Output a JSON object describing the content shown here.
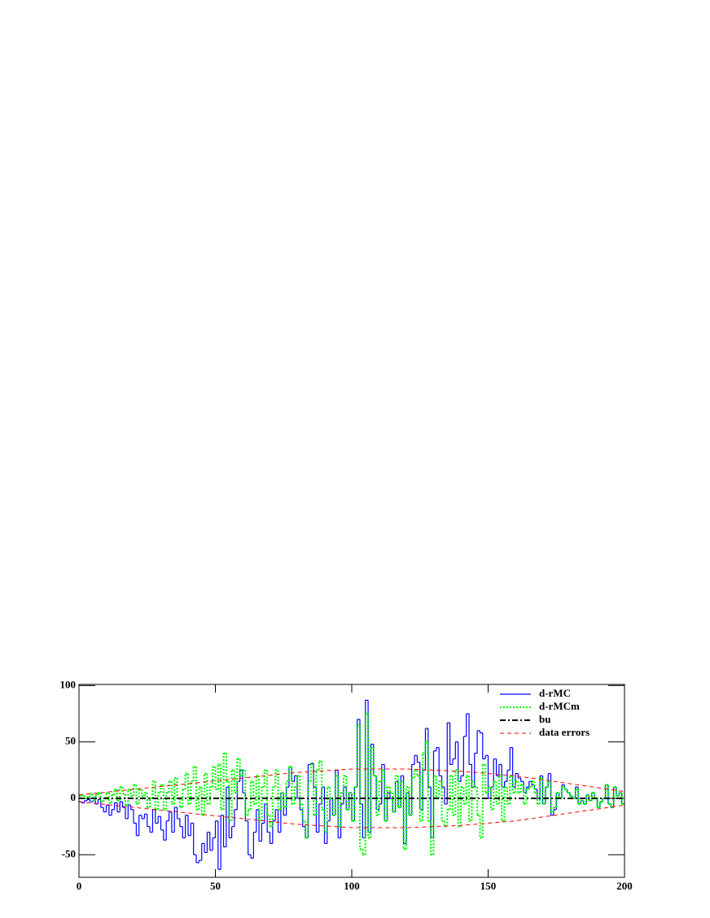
{
  "chart_data": {
    "type": "histogram",
    "bins": [
      0,
      1,
      2,
      3,
      4,
      5,
      6,
      7,
      8,
      9,
      10,
      11,
      12,
      13,
      14,
      15,
      16,
      17,
      18,
      19,
      20,
      21,
      22,
      23,
      24,
      25,
      26,
      27,
      28,
      29,
      30,
      31,
      32,
      33,
      34,
      35,
      36,
      37,
      38,
      39,
      40,
      41,
      42,
      43,
      44,
      45,
      46,
      47,
      48,
      49,
      50,
      51,
      52,
      53,
      54,
      55,
      56,
      57,
      58,
      59,
      60,
      61,
      62,
      63,
      64,
      65,
      66,
      67,
      68,
      69,
      70,
      71,
      72,
      73,
      74,
      75,
      76,
      77,
      78,
      79,
      80,
      81,
      82,
      83,
      84,
      85,
      86,
      87,
      88,
      89,
      90,
      91,
      92,
      93,
      94,
      95,
      96,
      97,
      98,
      99,
      100,
      101,
      102,
      103,
      104,
      105,
      106,
      107,
      108,
      109,
      110,
      111,
      112,
      113,
      114,
      115,
      116,
      117,
      118,
      119,
      120,
      121,
      122,
      123,
      124,
      125,
      126,
      127,
      128,
      129,
      130,
      131,
      132,
      133,
      134,
      135,
      136,
      137,
      138,
      139,
      140,
      141,
      142,
      143,
      144,
      145,
      146,
      147,
      148,
      149,
      150,
      151,
      152,
      153,
      154,
      155,
      156,
      157,
      158,
      159,
      160,
      161,
      162,
      163,
      164,
      165,
      166,
      167,
      168,
      169,
      170,
      171,
      172,
      173,
      174,
      175,
      176,
      177,
      178,
      179,
      180,
      181,
      182,
      183,
      184,
      185,
      186,
      187,
      188,
      189,
      190,
      191,
      192,
      193,
      194,
      195,
      196,
      197,
      198,
      199,
      200
    ],
    "series": [
      {
        "name": "d-rMC",
        "color": "#0000ff",
        "style": "solid",
        "values": [
          -3,
          -4,
          -2,
          -1,
          -3,
          -2,
          -5,
          -1,
          -8,
          -12,
          -6,
          -15,
          -10,
          -4,
          -12,
          -3,
          -8,
          -18,
          -6,
          -10,
          -22,
          -33,
          -15,
          -18,
          -14,
          -25,
          -30,
          -10,
          -22,
          -16,
          -28,
          -37,
          -20,
          -12,
          -30,
          -8,
          -18,
          -25,
          -35,
          -15,
          -33,
          -22,
          -50,
          -57,
          -55,
          -40,
          -48,
          -30,
          -46,
          -35,
          -20,
          -63,
          -15,
          -43,
          10,
          -35,
          -25,
          -10,
          15,
          25,
          5,
          -20,
          -50,
          -53,
          -30,
          -10,
          -38,
          -22,
          -5,
          -30,
          -40,
          -20,
          -10,
          -30,
          5,
          -15,
          10,
          28,
          15,
          20,
          0,
          -10,
          -25,
          -35,
          30,
          31,
          10,
          -30,
          -5,
          10,
          -40,
          -20,
          0,
          -15,
          25,
          -35,
          -5,
          10,
          -10,
          5,
          -20,
          10,
          70,
          -5,
          -35,
          87,
          -30,
          48,
          20,
          -10,
          -5,
          30,
          -20,
          5,
          0,
          -12,
          15,
          -8,
          20,
          -40,
          5,
          -15,
          30,
          38,
          32,
          -10,
          25,
          62,
          10,
          -35,
          42,
          45,
          20,
          10,
          -5,
          67,
          30,
          35,
          50,
          15,
          20,
          55,
          75,
          30,
          10,
          40,
          60,
          58,
          35,
          38,
          0,
          10,
          35,
          20,
          30,
          10,
          15,
          25,
          45,
          10,
          22,
          18,
          15,
          5,
          10,
          15,
          12,
          8,
          0,
          20,
          -5,
          10,
          22,
          -15,
          -10,
          5,
          0,
          12,
          8,
          5,
          2,
          0,
          10,
          -5,
          -2,
          -5,
          3,
          -2,
          5,
          0,
          -8,
          -3,
          0,
          12,
          -5,
          -8,
          10,
          2,
          5,
          -5
        ]
      },
      {
        "name": "d-rMCm",
        "color": "#00ff00",
        "style": "dotted",
        "values": [
          2,
          3,
          0,
          1,
          4,
          -2,
          3,
          5,
          -3,
          0,
          5,
          -4,
          3,
          8,
          -2,
          10,
          4,
          -6,
          8,
          2,
          12,
          -5,
          8,
          2,
          5,
          -8,
          0,
          15,
          -10,
          5,
          12,
          -10,
          5,
          15,
          -5,
          18,
          0,
          -8,
          8,
          22,
          -5,
          15,
          28,
          -10,
          10,
          -15,
          22,
          -5,
          10,
          28,
          8,
          30,
          -10,
          40,
          15,
          -20,
          25,
          5,
          35,
          20,
          25,
          -15,
          -10,
          15,
          -5,
          20,
          -20,
          10,
          25,
          -15,
          -25,
          10,
          25,
          -10,
          5,
          -8,
          15,
          28,
          -5,
          10,
          20,
          -5,
          -20,
          -35,
          15,
          30,
          -15,
          25,
          33,
          -10,
          -30,
          10,
          0,
          -15,
          20,
          -25,
          5,
          20,
          -10,
          5,
          -20,
          10,
          65,
          -45,
          -50,
          75,
          -35,
          45,
          20,
          -15,
          15,
          25,
          -20,
          10,
          5,
          -12,
          20,
          -8,
          15,
          -45,
          10,
          -15,
          18,
          25,
          20,
          -20,
          40,
          50,
          -20,
          -50,
          20,
          0,
          15,
          -20,
          -25,
          -10,
          20,
          -15,
          25,
          -25,
          10,
          -5,
          20,
          -20,
          15,
          10,
          -15,
          -35,
          30,
          5,
          10,
          -10,
          15,
          -5,
          20,
          -20,
          10,
          -5,
          20,
          5,
          15,
          5,
          12,
          -5,
          8,
          10,
          15,
          5,
          -5,
          18,
          -5,
          10,
          15,
          -12,
          -8,
          5,
          0,
          10,
          8,
          5,
          2,
          0,
          8,
          -5,
          -2,
          -5,
          3,
          -2,
          5,
          0,
          -8,
          -3,
          0,
          12,
          -5,
          -8,
          10,
          2,
          5,
          -5
        ]
      },
      {
        "name": "bu",
        "color": "#000000",
        "style": "dashdot",
        "x": [
          0,
          200
        ],
        "values": [
          0,
          0
        ]
      },
      {
        "name": "data errors",
        "color": "#ff0000",
        "style": "dashed",
        "x": [
          0,
          20,
          40,
          60,
          80,
          100,
          120,
          140,
          160,
          180,
          200
        ],
        "values": [
          3,
          8,
          13,
          18,
          23,
          26,
          26,
          24,
          20,
          13,
          6
        ],
        "lower": [
          -3,
          -8,
          -13,
          -18,
          -23,
          -26,
          -26,
          -24,
          -20,
          -13,
          -6
        ]
      }
    ],
    "xlim": [
      0,
      200
    ],
    "xticks": [
      0,
      50,
      100,
      150,
      200
    ],
    "ylim": [
      -70,
      101
    ],
    "yticks": [
      -50,
      0,
      50,
      100
    ],
    "legend": "upper-right"
  }
}
